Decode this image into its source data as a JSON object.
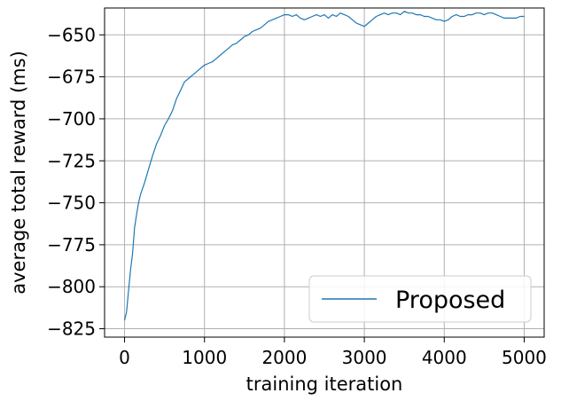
{
  "chart_data": {
    "type": "line",
    "title": "",
    "xlabel": "training iteration",
    "ylabel": "average total reward (ms)",
    "xlim": [
      -250,
      5250
    ],
    "ylim": [
      -830,
      -634
    ],
    "grid": true,
    "xticks": [
      0,
      1000,
      2000,
      3000,
      4000,
      5000
    ],
    "yticks": [
      -825,
      -800,
      -775,
      -750,
      -725,
      -700,
      -675,
      -650
    ],
    "xtick_labels": [
      "0",
      "1000",
      "2000",
      "3000",
      "4000",
      "5000"
    ],
    "ytick_labels": [
      "−825",
      "−800",
      "−775",
      "−750",
      "−725",
      "−700",
      "−675",
      "−650"
    ],
    "legend_position": "lower-right",
    "series": [
      {
        "name": "Proposed",
        "color": "#1f77b4",
        "x": [
          0,
          25,
          50,
          75,
          100,
          125,
          150,
          175,
          200,
          250,
          300,
          350,
          400,
          450,
          500,
          550,
          600,
          650,
          700,
          750,
          800,
          850,
          900,
          950,
          1000,
          1050,
          1100,
          1150,
          1200,
          1250,
          1300,
          1350,
          1400,
          1450,
          1500,
          1550,
          1600,
          1650,
          1700,
          1750,
          1800,
          1850,
          1900,
          1950,
          2000,
          2050,
          2100,
          2150,
          2200,
          2250,
          2300,
          2350,
          2400,
          2450,
          2500,
          2550,
          2600,
          2650,
          2700,
          2750,
          2800,
          2850,
          2900,
          2950,
          3000,
          3050,
          3100,
          3150,
          3200,
          3250,
          3300,
          3350,
          3400,
          3450,
          3500,
          3550,
          3600,
          3650,
          3700,
          3750,
          3800,
          3850,
          3900,
          3950,
          4000,
          4050,
          4100,
          4150,
          4200,
          4250,
          4300,
          4350,
          4400,
          4450,
          4500,
          4550,
          4600,
          4650,
          4700,
          4750,
          4800,
          4850,
          4900,
          4950,
          5000
        ],
        "values": [
          -820,
          -815,
          -802,
          -790,
          -780,
          -765,
          -757,
          -750,
          -745,
          -738,
          -730,
          -722,
          -715,
          -710,
          -704,
          -700,
          -695,
          -688,
          -683,
          -678,
          -676,
          -674,
          -672,
          -670,
          -668,
          -667,
          -666,
          -664,
          -662,
          -660,
          -658,
          -656,
          -655,
          -653,
          -651,
          -650,
          -648,
          -647,
          -646,
          -644,
          -642,
          -641,
          -640,
          -639,
          -638,
          -638,
          -639,
          -638,
          -640,
          -641,
          -640,
          -639,
          -638,
          -639,
          -638,
          -640,
          -638,
          -639,
          -637,
          -638,
          -639,
          -641,
          -643,
          -644,
          -645,
          -643,
          -641,
          -639,
          -638,
          -637,
          -638,
          -637,
          -637,
          -638,
          -636,
          -637,
          -637,
          -638,
          -638,
          -639,
          -639,
          -640,
          -641,
          -641,
          -642,
          -641,
          -639,
          -638,
          -639,
          -639,
          -638,
          -638,
          -637,
          -637,
          -638,
          -637,
          -637,
          -638,
          -639,
          -640,
          -640,
          -640,
          -640,
          -639,
          -639
        ]
      }
    ]
  }
}
